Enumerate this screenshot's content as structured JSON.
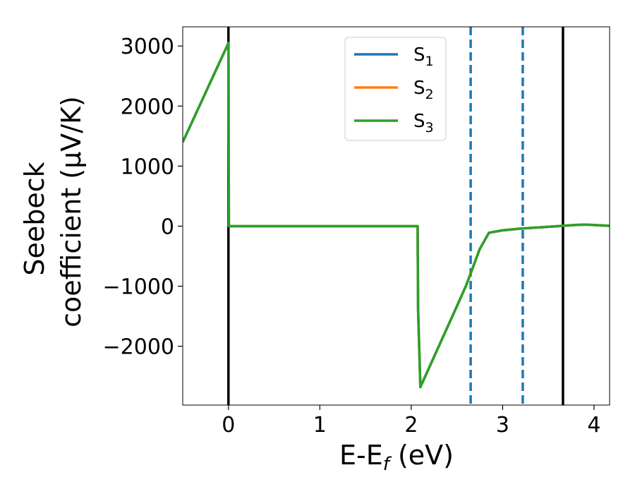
{
  "chart_data": {
    "type": "line",
    "title": "",
    "xlabel": "E-E",
    "xlabel_sub": "f",
    "xlabel_unit": " (eV)",
    "ylabel_line1": "Seebeck",
    "ylabel_line2": "coefficient  (μV/K)",
    "xlim": [
      -0.5,
      4.17
    ],
    "ylim": [
      -2980,
      3320
    ],
    "xticks": [
      0,
      1,
      2,
      3,
      4
    ],
    "xtick_labels": [
      "0",
      "1",
      "2",
      "3",
      "4"
    ],
    "yticks": [
      -2000,
      -1000,
      0,
      1000,
      2000,
      3000
    ],
    "ytick_labels": [
      "−2000",
      "−1000",
      "0",
      "1000",
      "2000",
      "3000"
    ],
    "grid": false,
    "legend_position": "top-center",
    "series": [
      {
        "name": "S",
        "sub": "1",
        "color": "#1f77b4",
        "x": [
          -0.5,
          0.0,
          0.005,
          2.07,
          2.075,
          2.1,
          2.5,
          2.6,
          2.75,
          2.85,
          3.0,
          3.2,
          3.4,
          3.6,
          3.7,
          3.8,
          3.9,
          4.0,
          4.17
        ],
        "y": [
          1400,
          3050,
          0,
          0,
          -1400,
          -2680,
          -1330,
          -990,
          -380,
          -110,
          -70,
          -40,
          -20,
          0,
          10,
          20,
          25,
          18,
          5
        ]
      },
      {
        "name": "S",
        "sub": "2",
        "color": "#ff7f0e",
        "x": [
          -0.5,
          0.0,
          0.005,
          2.07,
          2.075,
          2.1,
          2.5,
          2.6,
          2.75,
          2.85,
          3.0,
          3.2,
          3.4,
          3.6,
          3.7,
          3.8,
          3.9,
          4.0,
          4.17
        ],
        "y": [
          1400,
          3050,
          0,
          0,
          -1400,
          -2680,
          -1330,
          -990,
          -380,
          -110,
          -70,
          -40,
          -20,
          0,
          10,
          20,
          25,
          18,
          5
        ]
      },
      {
        "name": "S",
        "sub": "3",
        "color": "#2ca02c",
        "x": [
          -0.5,
          0.0,
          0.005,
          2.07,
          2.075,
          2.1,
          2.5,
          2.6,
          2.75,
          2.85,
          3.0,
          3.2,
          3.4,
          3.6,
          3.7,
          3.8,
          3.9,
          4.0,
          4.17
        ],
        "y": [
          1400,
          3050,
          0,
          0,
          -1400,
          -2680,
          -1330,
          -990,
          -380,
          -110,
          -70,
          -40,
          -20,
          0,
          10,
          20,
          25,
          18,
          5
        ]
      }
    ],
    "vlines": [
      {
        "x": 0.0,
        "style": "solid",
        "color": "#000000"
      },
      {
        "x": 3.66,
        "style": "solid",
        "color": "#000000"
      },
      {
        "x": 2.65,
        "style": "dashed",
        "color": "#1f77b4"
      },
      {
        "x": 3.22,
        "style": "dashed",
        "color": "#1f77b4"
      }
    ]
  }
}
